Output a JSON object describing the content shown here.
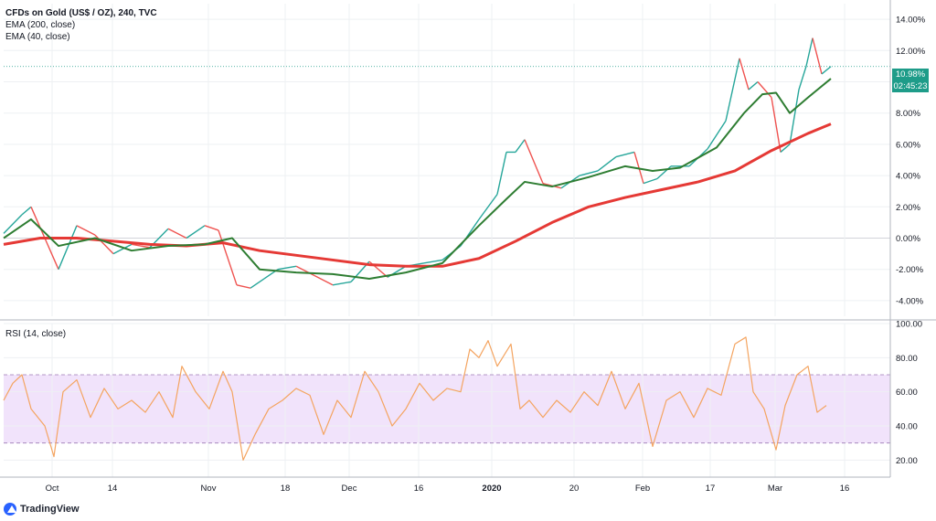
{
  "header": {
    "title": "CFDs on Gold (US$ / OZ), 240, TVC",
    "indicator1": "EMA (200, close)",
    "indicator2": "EMA (40, close)"
  },
  "rsi_label": "RSI (14, close)",
  "branding": "TradingView",
  "price_tags": {
    "last": "10.98%",
    "countdown": "02:45:23"
  },
  "colors": {
    "up": "#26a69a",
    "down": "#ef5350",
    "ema200": "#e53935",
    "ema40": "#2e7d32",
    "rsi": "#f4a460",
    "rsi_band": "#f1e3fb",
    "grid": "#eef0f3",
    "tag": "#1e9c89"
  },
  "chart_data": [
    {
      "type": "line",
      "title": "CFDs on Gold (US$ / OZ), 240, TVC",
      "y_unit": "%",
      "ylim": [
        -5,
        15
      ],
      "y_ticks": [
        "14.00%",
        "12.00%",
        "10.00%",
        "8.00%",
        "6.00%",
        "4.00%",
        "2.00%",
        "0.00%",
        "-2.00%",
        "-4.00%"
      ],
      "x_ticks": [
        "Oct",
        "14",
        "Nov",
        "18",
        "Dec",
        "16",
        "2020",
        "20",
        "Feb",
        "17",
        "Mar",
        "16"
      ],
      "grid": true,
      "last_value": "10.98%",
      "series": [
        {
          "name": "EMA (200, close)",
          "x": [
            0,
            40,
            80,
            120,
            160,
            200,
            240,
            280,
            320,
            360,
            400,
            440,
            480,
            520,
            560,
            600,
            640,
            680,
            720,
            760,
            800,
            840,
            880,
            905
          ],
          "values": [
            -0.4,
            0.0,
            0.0,
            -0.2,
            -0.4,
            -0.5,
            -0.3,
            -0.8,
            -1.1,
            -1.4,
            -1.7,
            -1.8,
            -1.8,
            -1.3,
            -0.2,
            1.0,
            2.0,
            2.6,
            3.1,
            3.6,
            4.3,
            5.6,
            6.7,
            7.3
          ]
        },
        {
          "name": "EMA (40, close)",
          "x": [
            0,
            30,
            60,
            100,
            140,
            180,
            220,
            250,
            280,
            320,
            360,
            400,
            440,
            480,
            520,
            550,
            570,
            600,
            640,
            680,
            710,
            740,
            780,
            810,
            830,
            845,
            860,
            880,
            905
          ],
          "values": [
            0.0,
            1.2,
            -0.5,
            0.0,
            -0.8,
            -0.5,
            -0.4,
            0.0,
            -2.0,
            -2.2,
            -2.3,
            -2.6,
            -2.2,
            -1.6,
            0.8,
            2.5,
            3.6,
            3.3,
            3.9,
            4.6,
            4.3,
            4.5,
            5.8,
            8.0,
            9.2,
            9.3,
            8.0,
            9.0,
            10.2
          ]
        },
        {
          "name": "Price",
          "x": [
            0,
            20,
            30,
            45,
            60,
            80,
            100,
            120,
            140,
            160,
            180,
            200,
            220,
            235,
            255,
            270,
            285,
            300,
            320,
            340,
            360,
            380,
            400,
            420,
            440,
            460,
            480,
            500,
            520,
            540,
            550,
            560,
            570,
            590,
            610,
            630,
            650,
            670,
            690,
            700,
            715,
            730,
            750,
            770,
            790,
            805,
            815,
            825,
            840,
            850,
            860,
            870,
            878,
            885,
            895,
            905
          ],
          "values": [
            0.3,
            1.5,
            2.0,
            0.0,
            -2.0,
            0.8,
            0.2,
            -1.0,
            -0.4,
            -0.6,
            0.6,
            0.0,
            0.8,
            0.5,
            -3.0,
            -3.2,
            -2.6,
            -2.0,
            -1.8,
            -2.4,
            -3.0,
            -2.8,
            -1.5,
            -2.5,
            -1.8,
            -1.6,
            -1.4,
            -0.5,
            1.2,
            2.8,
            5.5,
            5.5,
            6.3,
            3.5,
            3.2,
            4.0,
            4.3,
            5.2,
            5.5,
            3.5,
            3.8,
            4.6,
            4.6,
            5.7,
            7.5,
            11.5,
            9.5,
            10.0,
            9.0,
            5.5,
            6.0,
            9.5,
            11.0,
            12.8,
            10.5,
            10.98
          ]
        }
      ]
    },
    {
      "type": "line",
      "title": "RSI (14, close)",
      "ylim": [
        10,
        100
      ],
      "y_ticks": [
        "100.00",
        "80.00",
        "60.00",
        "40.00",
        "20.00"
      ],
      "band": [
        30,
        70
      ],
      "grid": true,
      "series": [
        {
          "name": "RSI (14, close)",
          "x": [
            0,
            10,
            20,
            30,
            45,
            55,
            65,
            80,
            95,
            110,
            125,
            140,
            155,
            170,
            185,
            195,
            210,
            225,
            240,
            250,
            262,
            275,
            290,
            305,
            320,
            335,
            350,
            365,
            380,
            395,
            410,
            425,
            440,
            455,
            470,
            485,
            500,
            510,
            520,
            530,
            540,
            555,
            565,
            575,
            590,
            605,
            620,
            635,
            650,
            665,
            680,
            695,
            710,
            725,
            740,
            755,
            770,
            785,
            800,
            812,
            820,
            832,
            845,
            855,
            868,
            880,
            890,
            900
          ],
          "values": [
            55,
            65,
            70,
            50,
            40,
            22,
            60,
            67,
            45,
            62,
            50,
            55,
            48,
            60,
            45,
            75,
            60,
            50,
            72,
            60,
            20,
            35,
            50,
            55,
            62,
            58,
            35,
            55,
            45,
            72,
            60,
            40,
            50,
            65,
            55,
            62,
            60,
            85,
            80,
            90,
            75,
            88,
            50,
            55,
            45,
            55,
            48,
            60,
            52,
            72,
            50,
            65,
            28,
            55,
            60,
            45,
            62,
            58,
            88,
            92,
            60,
            50,
            26,
            52,
            70,
            75,
            48,
            52
          ]
        }
      ]
    }
  ]
}
